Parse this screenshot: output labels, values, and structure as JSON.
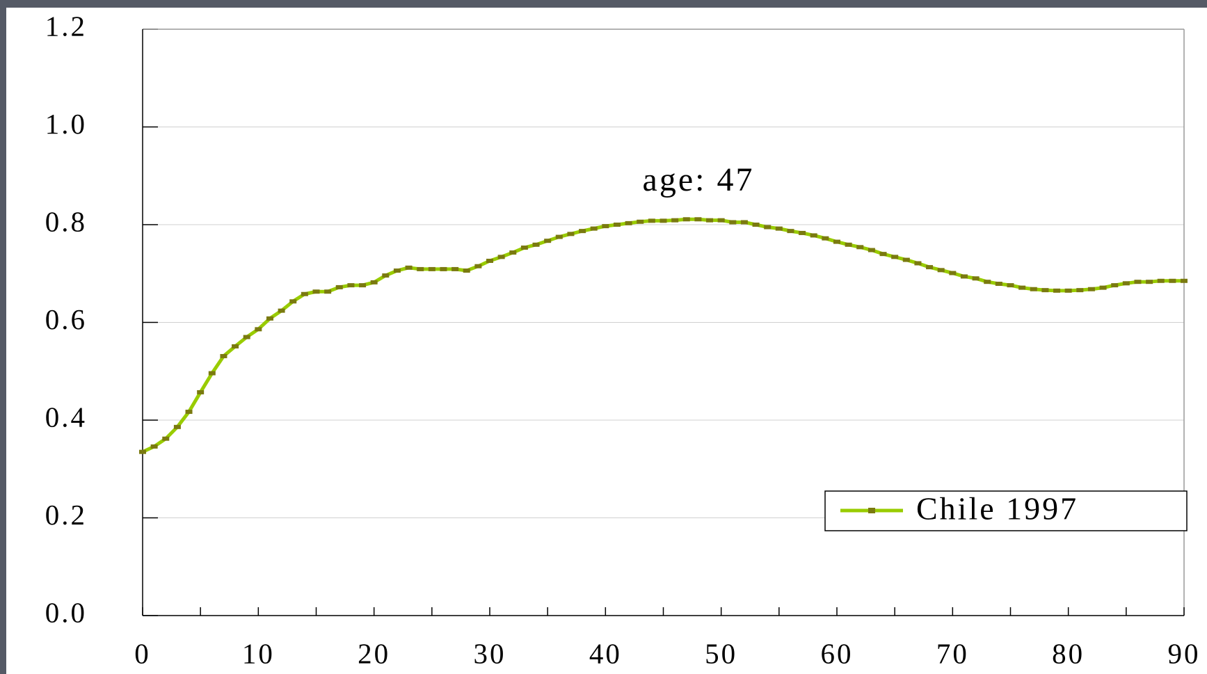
{
  "chart_data": {
    "type": "line",
    "annotation": "age: 47",
    "x": [
      0,
      1,
      2,
      3,
      4,
      5,
      6,
      7,
      8,
      9,
      10,
      11,
      12,
      13,
      14,
      15,
      16,
      17,
      18,
      19,
      20,
      21,
      22,
      23,
      24,
      25,
      26,
      27,
      28,
      29,
      30,
      31,
      32,
      33,
      34,
      35,
      36,
      37,
      38,
      39,
      40,
      41,
      42,
      43,
      44,
      45,
      46,
      47,
      48,
      49,
      50,
      51,
      52,
      53,
      54,
      55,
      56,
      57,
      58,
      59,
      60,
      61,
      62,
      63,
      64,
      65,
      66,
      67,
      68,
      69,
      70,
      71,
      72,
      73,
      74,
      75,
      76,
      77,
      78,
      79,
      80,
      81,
      82,
      83,
      84,
      85,
      86,
      87,
      88,
      89,
      90
    ],
    "series": [
      {
        "name": "Chile 1997",
        "color": "#99cc00",
        "marker_color": "#7a7a10",
        "values": [
          0.335,
          0.346,
          0.362,
          0.386,
          0.417,
          0.457,
          0.496,
          0.531,
          0.551,
          0.57,
          0.586,
          0.608,
          0.624,
          0.643,
          0.658,
          0.663,
          0.663,
          0.672,
          0.676,
          0.676,
          0.682,
          0.696,
          0.706,
          0.712,
          0.709,
          0.709,
          0.709,
          0.709,
          0.706,
          0.715,
          0.726,
          0.734,
          0.743,
          0.753,
          0.759,
          0.767,
          0.775,
          0.781,
          0.787,
          0.792,
          0.797,
          0.8,
          0.803,
          0.806,
          0.808,
          0.808,
          0.809,
          0.811,
          0.811,
          0.809,
          0.809,
          0.805,
          0.805,
          0.8,
          0.795,
          0.792,
          0.787,
          0.783,
          0.778,
          0.772,
          0.765,
          0.759,
          0.754,
          0.748,
          0.74,
          0.734,
          0.728,
          0.721,
          0.713,
          0.707,
          0.701,
          0.694,
          0.69,
          0.683,
          0.679,
          0.676,
          0.671,
          0.668,
          0.666,
          0.665,
          0.665,
          0.666,
          0.668,
          0.671,
          0.676,
          0.68,
          0.683,
          0.683,
          0.685,
          0.685,
          0.685
        ]
      }
    ],
    "xlim": [
      0,
      90
    ],
    "xticks": [
      0,
      10,
      20,
      30,
      40,
      50,
      60,
      70,
      80,
      90
    ],
    "xminorticks": [
      5,
      15,
      25,
      35,
      45,
      55,
      65,
      75,
      85
    ],
    "ylim": [
      0,
      1.2
    ],
    "yticks": [
      {
        "value": 0,
        "label": "0.0"
      },
      0.2,
      0.4,
      0.6,
      0.8,
      {
        "value": 1,
        "label": "1.0"
      },
      1.2
    ],
    "grid": true,
    "legend": "lower right"
  }
}
